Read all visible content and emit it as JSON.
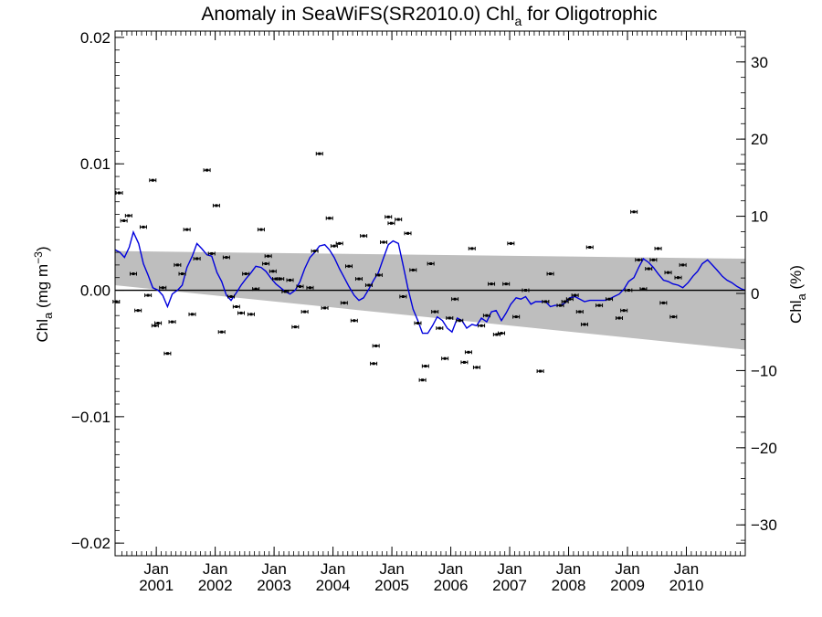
{
  "chart_data": {
    "type": "scatter",
    "title": "Anomaly in SeaWiFS(SR2010.0) Chl",
    "title_sub": "a",
    "title_suffix": " for Oligotrophic",
    "ylabel_left": {
      "main": "Chl",
      "sub": "a",
      "unit_pre": " (mg m",
      "unit_sup": "−3",
      "unit_post": ")"
    },
    "ylabel_right": {
      "main": "Chl",
      "sub": "a",
      "post": " (%)"
    },
    "ylim": [
      -0.021,
      0.0205
    ],
    "ylim_right": [
      -34,
      34
    ],
    "xlim": [
      2000.3,
      2011.0
    ],
    "yticks_left": [
      {
        "v": 0.02,
        "label": "0.02"
      },
      {
        "v": 0.01,
        "label": "0.01"
      },
      {
        "v": 0.0,
        "label": "0.00"
      },
      {
        "v": -0.01,
        "label": "−0.01"
      },
      {
        "v": -0.02,
        "label": "−0.02"
      }
    ],
    "yticks_right": [
      {
        "v": 30,
        "label": "30"
      },
      {
        "v": 20,
        "label": "20"
      },
      {
        "v": 10,
        "label": "10"
      },
      {
        "v": 0,
        "label": "0"
      },
      {
        "v": -10,
        "label": "−10"
      },
      {
        "v": -20,
        "label": "−20"
      },
      {
        "v": -30,
        "label": "−30"
      }
    ],
    "xticks": [
      {
        "x": 2001.0,
        "month": "Jan",
        "year": "2001"
      },
      {
        "x": 2002.0,
        "month": "Jan",
        "year": "2002"
      },
      {
        "x": 2003.0,
        "month": "Jan",
        "year": "2003"
      },
      {
        "x": 2004.0,
        "month": "Jan",
        "year": "2004"
      },
      {
        "x": 2005.0,
        "month": "Jan",
        "year": "2005"
      },
      {
        "x": 2006.0,
        "month": "Jan",
        "year": "2006"
      },
      {
        "x": 2007.0,
        "month": "Jan",
        "year": "2007"
      },
      {
        "x": 2008.0,
        "month": "Jan",
        "year": "2008"
      },
      {
        "x": 2009.0,
        "month": "Jan",
        "year": "2009"
      },
      {
        "x": 2010.0,
        "month": "Jan",
        "year": "2010"
      }
    ],
    "uncertainty_band": {
      "x": [
        2000.3,
        2011.0
      ],
      "upper": [
        0.0031,
        0.0025
      ],
      "lower": [
        0.0004,
        -0.0047
      ]
    },
    "series": [
      {
        "kind": "points",
        "color": "#000000",
        "points": [
          [
            2000.32,
            -0.0009
          ],
          [
            2000.37,
            0.0077
          ],
          [
            2000.45,
            0.0055
          ],
          [
            2000.53,
            0.0059
          ],
          [
            2000.61,
            0.0013
          ],
          [
            2000.69,
            -0.0016
          ],
          [
            2000.78,
            0.005
          ],
          [
            2000.86,
            -0.0004
          ],
          [
            2000.94,
            0.0087
          ],
          [
            2000.98,
            -0.0028
          ],
          [
            2001.03,
            -0.0026
          ],
          [
            2001.11,
            0.0002
          ],
          [
            2001.19,
            -0.005
          ],
          [
            2001.27,
            -0.0025
          ],
          [
            2001.36,
            0.002
          ],
          [
            2001.44,
            0.0013
          ],
          [
            2001.52,
            0.0048
          ],
          [
            2001.61,
            -0.0019
          ],
          [
            2001.69,
            0.0025
          ],
          [
            2001.86,
            0.0095
          ],
          [
            2001.94,
            0.0029
          ],
          [
            2002.02,
            0.0067
          ],
          [
            2002.11,
            -0.0033
          ],
          [
            2002.19,
            0.0026
          ],
          [
            2002.27,
            -0.0005
          ],
          [
            2002.36,
            -0.0013
          ],
          [
            2002.44,
            -0.0018
          ],
          [
            2002.52,
            0.0013
          ],
          [
            2002.61,
            -0.0019
          ],
          [
            2002.69,
            0.0001
          ],
          [
            2002.78,
            0.0048
          ],
          [
            2002.86,
            0.0021
          ],
          [
            2002.9,
            0.0027
          ],
          [
            2002.98,
            0.0015
          ],
          [
            2003.03,
            0.0009
          ],
          [
            2003.11,
            0.0009
          ],
          [
            2003.19,
            -0.0001
          ],
          [
            2003.27,
            0.0008
          ],
          [
            2003.36,
            -0.0029
          ],
          [
            2003.44,
            0.0003
          ],
          [
            2003.52,
            -0.0017
          ],
          [
            2003.61,
            0.0002
          ],
          [
            2003.69,
            0.0031
          ],
          [
            2003.77,
            0.0108
          ],
          [
            2003.86,
            -0.0014
          ],
          [
            2003.94,
            0.0057
          ],
          [
            2004.02,
            0.0035
          ],
          [
            2004.11,
            0.0037
          ],
          [
            2004.19,
            -0.001
          ],
          [
            2004.27,
            0.0019
          ],
          [
            2004.36,
            -0.0024
          ],
          [
            2004.44,
            0.0009
          ],
          [
            2004.52,
            0.0043
          ],
          [
            2004.61,
            0.0004
          ],
          [
            2004.69,
            -0.0058
          ],
          [
            2004.73,
            -0.0044
          ],
          [
            2004.78,
            0.0012
          ],
          [
            2004.86,
            0.0038
          ],
          [
            2004.94,
            0.0058
          ],
          [
            2004.99,
            0.0053
          ],
          [
            2005.11,
            0.0056
          ],
          [
            2005.19,
            -0.0005
          ],
          [
            2005.27,
            0.0045
          ],
          [
            2005.36,
            0.0016
          ],
          [
            2005.44,
            -0.0026
          ],
          [
            2005.52,
            -0.0071
          ],
          [
            2005.57,
            -0.006
          ],
          [
            2005.66,
            0.0021
          ],
          [
            2005.73,
            -0.0017
          ],
          [
            2005.81,
            -0.003
          ],
          [
            2005.9,
            -0.0054
          ],
          [
            2005.98,
            -0.0022
          ],
          [
            2006.07,
            -0.0007
          ],
          [
            2006.15,
            -0.0024
          ],
          [
            2006.23,
            -0.0057
          ],
          [
            2006.3,
            -0.0049
          ],
          [
            2006.36,
            0.0033
          ],
          [
            2006.44,
            -0.0061
          ],
          [
            2006.52,
            -0.0028
          ],
          [
            2006.61,
            -0.002
          ],
          [
            2006.69,
            0.0005
          ],
          [
            2006.78,
            -0.0035
          ],
          [
            2006.86,
            -0.0034
          ],
          [
            2006.94,
            0.0005
          ],
          [
            2007.02,
            0.0037
          ],
          [
            2007.11,
            -0.0021
          ],
          [
            2007.27,
            0.0
          ],
          [
            2007.52,
            -0.0064
          ],
          [
            2007.61,
            -0.0009
          ],
          [
            2007.69,
            0.0013
          ],
          [
            2007.86,
            -0.0012
          ],
          [
            2007.94,
            -0.0009
          ],
          [
            2008.02,
            -0.0007
          ],
          [
            2008.11,
            -0.0004
          ],
          [
            2008.19,
            -0.0017
          ],
          [
            2008.27,
            -0.0027
          ],
          [
            2008.36,
            0.0034
          ],
          [
            2008.52,
            -0.0012
          ],
          [
            2008.69,
            -0.0007
          ],
          [
            2008.86,
            -0.0022
          ],
          [
            2008.94,
            -0.0016
          ],
          [
            2009.02,
            0.0
          ],
          [
            2009.11,
            0.0062
          ],
          [
            2009.19,
            0.0024
          ],
          [
            2009.27,
            0.0001
          ],
          [
            2009.36,
            0.0017
          ],
          [
            2009.44,
            0.0024
          ],
          [
            2009.52,
            0.0033
          ],
          [
            2009.61,
            -0.001
          ],
          [
            2009.69,
            0.0014
          ],
          [
            2009.78,
            -0.0021
          ],
          [
            2009.86,
            0.001
          ],
          [
            2009.94,
            0.002
          ]
        ]
      },
      {
        "kind": "line",
        "color": "#0000dd",
        "points": [
          [
            2000.3,
            0.0032
          ],
          [
            2000.38,
            0.003
          ],
          [
            2000.46,
            0.0026
          ],
          [
            2000.54,
            0.0034
          ],
          [
            2000.61,
            0.0046
          ],
          [
            2000.7,
            0.0037
          ],
          [
            2000.78,
            0.0021
          ],
          [
            2000.86,
            0.0012
          ],
          [
            2000.94,
            0.0002
          ],
          [
            2001.03,
            0.0
          ],
          [
            2001.11,
            -0.0004
          ],
          [
            2001.19,
            -0.0013
          ],
          [
            2001.27,
            -0.0003
          ],
          [
            2001.36,
            0.0
          ],
          [
            2001.44,
            0.0004
          ],
          [
            2001.52,
            0.0018
          ],
          [
            2001.61,
            0.0027
          ],
          [
            2001.69,
            0.0037
          ],
          [
            2001.77,
            0.0033
          ],
          [
            2001.86,
            0.0028
          ],
          [
            2001.94,
            0.0027
          ],
          [
            2002.03,
            0.0014
          ],
          [
            2002.11,
            0.0007
          ],
          [
            2002.19,
            -0.0004
          ],
          [
            2002.27,
            -0.0008
          ],
          [
            2002.36,
            -0.0002
          ],
          [
            2002.44,
            0.0004
          ],
          [
            2002.52,
            0.0009
          ],
          [
            2002.61,
            0.0014
          ],
          [
            2002.69,
            0.0019
          ],
          [
            2002.78,
            0.0018
          ],
          [
            2002.86,
            0.0015
          ],
          [
            2002.94,
            0.001
          ],
          [
            2003.03,
            0.0005
          ],
          [
            2003.11,
            0.0002
          ],
          [
            2003.19,
            -0.0001
          ],
          [
            2003.27,
            -0.0003
          ],
          [
            2003.36,
            0.0
          ],
          [
            2003.44,
            0.0007
          ],
          [
            2003.52,
            0.0017
          ],
          [
            2003.61,
            0.0026
          ],
          [
            2003.69,
            0.003
          ],
          [
            2003.77,
            0.0035
          ],
          [
            2003.86,
            0.0036
          ],
          [
            2003.94,
            0.0032
          ],
          [
            2004.02,
            0.0026
          ],
          [
            2004.11,
            0.0017
          ],
          [
            2004.19,
            0.001
          ],
          [
            2004.27,
            0.0003
          ],
          [
            2004.36,
            -0.0004
          ],
          [
            2004.44,
            -0.0008
          ],
          [
            2004.52,
            -0.0006
          ],
          [
            2004.61,
            0.0001
          ],
          [
            2004.69,
            0.0008
          ],
          [
            2004.77,
            0.0014
          ],
          [
            2004.86,
            0.0026
          ],
          [
            2004.94,
            0.0036
          ],
          [
            2005.02,
            0.0039
          ],
          [
            2005.11,
            0.0037
          ],
          [
            2005.19,
            0.002
          ],
          [
            2005.27,
            0.0002
          ],
          [
            2005.36,
            -0.0015
          ],
          [
            2005.44,
            -0.0024
          ],
          [
            2005.52,
            -0.0034
          ],
          [
            2005.61,
            -0.0034
          ],
          [
            2005.69,
            -0.0028
          ],
          [
            2005.77,
            -0.0021
          ],
          [
            2005.86,
            -0.0024
          ],
          [
            2005.94,
            -0.003
          ],
          [
            2006.02,
            -0.0033
          ],
          [
            2006.11,
            -0.0022
          ],
          [
            2006.19,
            -0.0024
          ],
          [
            2006.27,
            -0.003
          ],
          [
            2006.36,
            -0.0027
          ],
          [
            2006.44,
            -0.0028
          ],
          [
            2006.52,
            -0.0022
          ],
          [
            2006.61,
            -0.0025
          ],
          [
            2006.69,
            -0.0017
          ],
          [
            2006.77,
            -0.0016
          ],
          [
            2006.86,
            -0.0024
          ],
          [
            2006.94,
            -0.0018
          ],
          [
            2007.02,
            -0.0011
          ],
          [
            2007.11,
            -0.0006
          ],
          [
            2007.19,
            -0.0007
          ],
          [
            2007.27,
            -0.0005
          ],
          [
            2007.36,
            -0.0011
          ],
          [
            2007.44,
            -0.0009
          ],
          [
            2007.52,
            -0.0009
          ],
          [
            2007.61,
            -0.0009
          ],
          [
            2007.69,
            -0.0013
          ],
          [
            2007.77,
            -0.0012
          ],
          [
            2007.86,
            -0.0012
          ],
          [
            2007.94,
            -0.001
          ],
          [
            2008.02,
            -0.0006
          ],
          [
            2008.11,
            -0.0005
          ],
          [
            2008.19,
            -0.0007
          ],
          [
            2008.27,
            -0.0009
          ],
          [
            2008.36,
            -0.0008
          ],
          [
            2008.44,
            -0.0008
          ],
          [
            2008.52,
            -0.0008
          ],
          [
            2008.61,
            -0.0008
          ],
          [
            2008.69,
            -0.0007
          ],
          [
            2008.77,
            -0.0005
          ],
          [
            2008.86,
            -0.0003
          ],
          [
            2008.94,
            0.0001
          ],
          [
            2009.02,
            0.0007
          ],
          [
            2009.11,
            0.001
          ],
          [
            2009.19,
            0.0018
          ],
          [
            2009.27,
            0.0025
          ],
          [
            2009.36,
            0.0022
          ],
          [
            2009.44,
            0.0018
          ],
          [
            2009.52,
            0.0013
          ],
          [
            2009.61,
            0.0008
          ],
          [
            2009.69,
            0.0007
          ],
          [
            2009.77,
            0.0005
          ],
          [
            2009.86,
            0.0004
          ],
          [
            2009.94,
            0.0002
          ],
          [
            2010.03,
            0.0006
          ],
          [
            2010.11,
            0.0011
          ],
          [
            2010.19,
            0.0015
          ],
          [
            2010.27,
            0.0021
          ],
          [
            2010.36,
            0.0024
          ],
          [
            2010.44,
            0.002
          ],
          [
            2010.52,
            0.0016
          ],
          [
            2010.61,
            0.0011
          ],
          [
            2010.69,
            0.0008
          ],
          [
            2010.77,
            0.0006
          ],
          [
            2010.86,
            0.0003
          ],
          [
            2010.94,
            0.0001
          ],
          [
            2011.0,
            0.0
          ]
        ]
      }
    ],
    "zero_line": 0.0
  }
}
